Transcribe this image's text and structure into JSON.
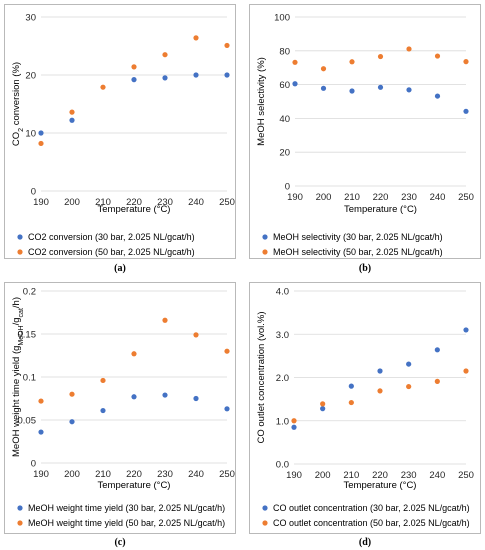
{
  "colors": {
    "series1": "#4472C4",
    "series2": "#ED7D31",
    "grid": "#d9d9d9",
    "border": "#b9b9b9"
  },
  "chart_data": [
    {
      "id": "a",
      "type": "scatter",
      "caption": "(a)",
      "xlabel": "Temperature (°C)",
      "ylabel": {
        "pre": "CO",
        "sub": "2",
        "post": " conversion (%)"
      },
      "xlim": [
        190,
        250
      ],
      "xticks": [
        "190",
        "200",
        "210",
        "220",
        "230",
        "240",
        "250"
      ],
      "ylim": [
        0,
        30
      ],
      "yticks": [
        "0",
        "10",
        "20",
        "30"
      ],
      "grid": "horizontal",
      "legend_position": "bottom",
      "x": [
        190,
        200,
        210,
        220,
        230,
        240,
        250
      ],
      "series": [
        {
          "name": "CO2 conversion (30 bar, 2.025 NL/gcat/h)",
          "values": [
            10.0,
            12.2,
            null,
            19.2,
            19.5,
            20.0,
            20.0
          ]
        },
        {
          "name": "CO2 conversion (50 bar, 2.025 NL/gcat/h)",
          "values": [
            8.2,
            13.6,
            17.9,
            21.4,
            23.5,
            26.4,
            25.1
          ]
        }
      ]
    },
    {
      "id": "b",
      "type": "scatter",
      "caption": "(b)",
      "xlabel": "Temperature (°C)",
      "ylabel": {
        "pre": "MeOH selectivity (%)",
        "sub": "",
        "post": ""
      },
      "xlim": [
        190,
        250
      ],
      "xticks": [
        "190",
        "200",
        "210",
        "220",
        "230",
        "240",
        "250"
      ],
      "ylim": [
        0,
        100
      ],
      "yticks": [
        "0",
        "20",
        "40",
        "60",
        "80",
        "100"
      ],
      "grid": "horizontal",
      "legend_position": "bottom",
      "x": [
        190,
        200,
        210,
        220,
        230,
        240,
        250
      ],
      "series": [
        {
          "name": "MeOH selectivity (30 bar, 2.025 NL/gcat/h)",
          "values": [
            60.5,
            57.8,
            56.2,
            58.4,
            56.9,
            53.2,
            44.2
          ]
        },
        {
          "name": "MeOH selectivity (50 bar, 2.025 NL/gcat/h)",
          "values": [
            73.2,
            69.4,
            73.5,
            76.6,
            81.1,
            76.9,
            73.6
          ]
        }
      ]
    },
    {
      "id": "c",
      "type": "scatter",
      "caption": "(c)",
      "xlabel": "Temperature (°C)",
      "ylabel": {
        "pre": "MeOH weight time yield (g",
        "sub": "MeOH",
        "mid": "/g",
        "sub2": "cat",
        "post": "/h)"
      },
      "xlim": [
        190,
        250
      ],
      "xticks": [
        "190",
        "200",
        "210",
        "220",
        "230",
        "240",
        "250"
      ],
      "ylim": [
        0,
        0.2
      ],
      "yticks": [
        "0",
        "0.05",
        "0.1",
        "0.15",
        "0.2"
      ],
      "grid": "horizontal",
      "legend_position": "bottom",
      "x": [
        190,
        200,
        210,
        220,
        230,
        240,
        250
      ],
      "series": [
        {
          "name": "MeOH weight time yield (30 bar, 2.025 NL/gcat/h)",
          "values": [
            0.036,
            0.048,
            0.061,
            0.077,
            0.079,
            0.075,
            0.063
          ]
        },
        {
          "name": "MeOH weight time yield  (50 bar, 2.025 NL/gcat/h)",
          "values": [
            0.072,
            0.08,
            0.096,
            0.127,
            0.166,
            0.149,
            0.13
          ]
        }
      ]
    },
    {
      "id": "d",
      "type": "scatter",
      "caption": "(d)",
      "xlabel": "Temperature (°C)",
      "ylabel": {
        "pre": "CO outlet concentration (vol.%)",
        "sub": "",
        "post": ""
      },
      "xlim": [
        190,
        250
      ],
      "xticks": [
        "190",
        "200",
        "210",
        "220",
        "230",
        "240",
        "250"
      ],
      "ylim": [
        0,
        4
      ],
      "yticks": [
        "0.0",
        "1.0",
        "2.0",
        "3.0",
        "4.0"
      ],
      "grid": "horizontal",
      "legend_position": "bottom",
      "x": [
        190,
        200,
        210,
        220,
        230,
        240,
        250
      ],
      "series": [
        {
          "name": "CO outlet concentration (30 bar, 2.025 NL/gcat/h)",
          "values": [
            0.85,
            1.28,
            1.8,
            2.15,
            2.31,
            2.64,
            3.1
          ]
        },
        {
          "name": "CO outlet concentration (50 bar, 2.025 NL/gcat/h)",
          "values": [
            1.0,
            1.39,
            1.42,
            1.69,
            1.79,
            1.91,
            2.15
          ]
        }
      ]
    }
  ]
}
